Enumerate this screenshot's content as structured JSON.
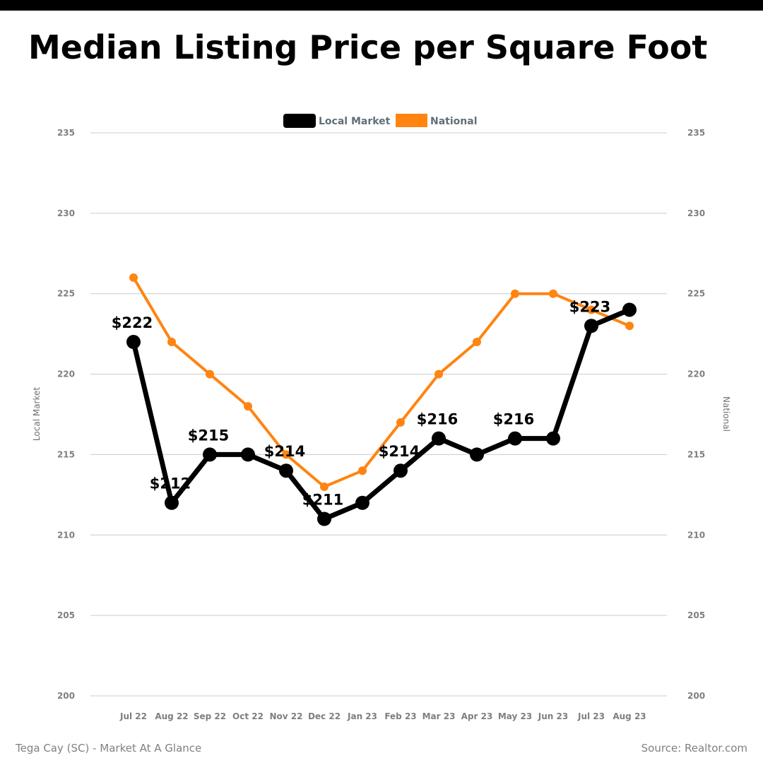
{
  "title": "Median Listing Price per Square Foot",
  "footer": {
    "left": "Tega Cay (SC) - Market At A Glance",
    "right": "Source: Realtor.com"
  },
  "chart_data": {
    "type": "line",
    "categories": [
      "Jul 22",
      "Aug 22",
      "Sep 22",
      "Oct 22",
      "Nov 22",
      "Dec 22",
      "Jan 23",
      "Feb 23",
      "Mar 23",
      "Apr 23",
      "May 23",
      "Jun 23",
      "Jul 23",
      "Aug 23"
    ],
    "series": [
      {
        "name": "Local Market",
        "color": "#000000",
        "values": [
          222,
          212,
          215,
          215,
          214,
          211,
          212,
          214,
          216,
          215,
          216,
          216,
          223,
          224
        ],
        "data_labels": [
          "$222",
          "$212",
          "$215",
          null,
          "$214",
          "$211",
          null,
          "$214",
          "$216",
          null,
          "$216",
          null,
          "$223",
          null
        ]
      },
      {
        "name": "National",
        "color": "#ff8411",
        "values": [
          226,
          222,
          220,
          218,
          215,
          213,
          214,
          217,
          220,
          222,
          225,
          225,
          224,
          223
        ]
      }
    ],
    "ylabel_left": "Local Market",
    "ylabel_right": "National",
    "ylim": [
      200,
      235
    ],
    "yticks": [
      "200",
      "205",
      "210",
      "215",
      "220",
      "225",
      "230",
      "235"
    ],
    "legend_position": "top-center",
    "grid": true
  }
}
